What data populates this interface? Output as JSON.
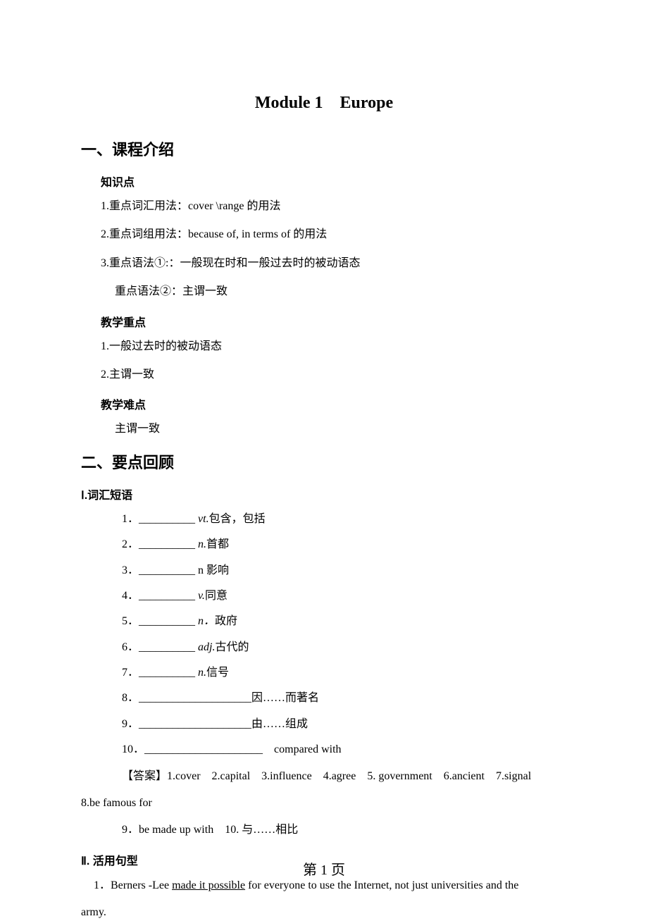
{
  "title": "Module 1　Europe",
  "section1": {
    "heading": "一、课程介绍",
    "sub1": "知识点",
    "points": [
      "1.重点词汇用法：cover \\range  的用法",
      "2.重点词组用法：because of, in terms of  的用法",
      "3.重点语法①:：一般现在时和一般过去时的被动语态"
    ],
    "point3b": "重点语法②：主谓一致",
    "sub2": "教学重点",
    "focus": [
      "1.一般过去时的被动语态",
      "2.主谓一致"
    ],
    "sub3": "教学难点",
    "difficulty": "主谓一致"
  },
  "section2": {
    "heading": "二、要点回顾",
    "vocab_heading": "Ⅰ.词汇短语",
    "vocab": [
      {
        "num": "1．",
        "blank": "__________ ",
        "pos": "vt.",
        "def": "包含，包括"
      },
      {
        "num": "2．",
        "blank": "__________ ",
        "pos": "n.",
        "def": "首都"
      },
      {
        "num": "3．",
        "blank": "__________ ",
        "pos": "n ",
        "def": "影响"
      },
      {
        "num": "4．",
        "blank": "__________ ",
        "pos": "v.",
        "def": "同意"
      },
      {
        "num": "5．",
        "blank": "__________ ",
        "pos": "n．",
        "def": "政府"
      },
      {
        "num": "6．",
        "blank": "__________ ",
        "pos": "adj.",
        "def": "古代的"
      },
      {
        "num": "7．",
        "blank": "__________ ",
        "pos": "n.",
        "def": "信号"
      },
      {
        "num": "8．",
        "blank": "____________________",
        "pos": "",
        "def": "因……而著名"
      },
      {
        "num": "9．",
        "blank": "____________________",
        "pos": "",
        "def": "由……组成"
      },
      {
        "num": "10．",
        "blank": "_____________________　",
        "pos": "",
        "def": "compared with"
      }
    ],
    "answer_line1": "【答案】1.cover　2.capital　3.influence　4.agree　5. government　6.ancient　7.signal　",
    "answer_line1_cont": "8.be famous for",
    "answer_line2": "9．be made up with　10.  与……相比",
    "sentence_heading": "Ⅱ. 活用句型",
    "sentence1_a": "1．Berners -Lee ",
    "sentence1_u": "made it possible",
    "sentence1_b": " for everyone to use the Internet, not just universities and the ",
    "sentence1_cont": "army."
  },
  "footer": "第  1  页"
}
